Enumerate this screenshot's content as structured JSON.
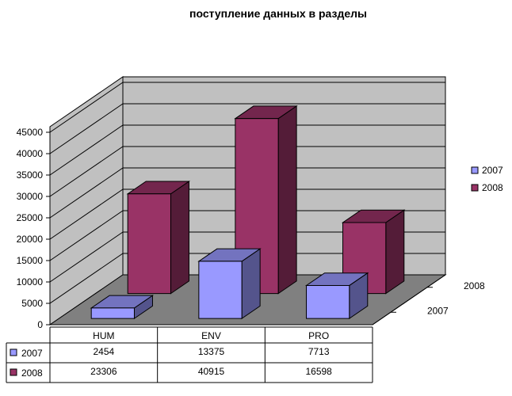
{
  "chart_data": {
    "type": "bar",
    "title": "поступление  данных в разделы",
    "categories": [
      "HUM",
      "ENV",
      "PRO"
    ],
    "series": [
      {
        "name": "2007",
        "values": [
          2454,
          13375,
          7713
        ],
        "color": "#9999FF"
      },
      {
        "name": "2008",
        "values": [
          23306,
          40915,
          16598
        ],
        "color": "#993366"
      }
    ],
    "depth_labels": [
      "2007",
      "2008"
    ],
    "y_ticks": [
      "0",
      "5000",
      "10000",
      "15000",
      "20000",
      "25000",
      "30000",
      "35000",
      "40000",
      "45000"
    ],
    "ylim": [
      0,
      45000
    ],
    "grid": true,
    "legend": "right",
    "data_table": true,
    "style": "3d-column",
    "wall_color": "#C0C0C0",
    "floor_color": "#808080"
  }
}
